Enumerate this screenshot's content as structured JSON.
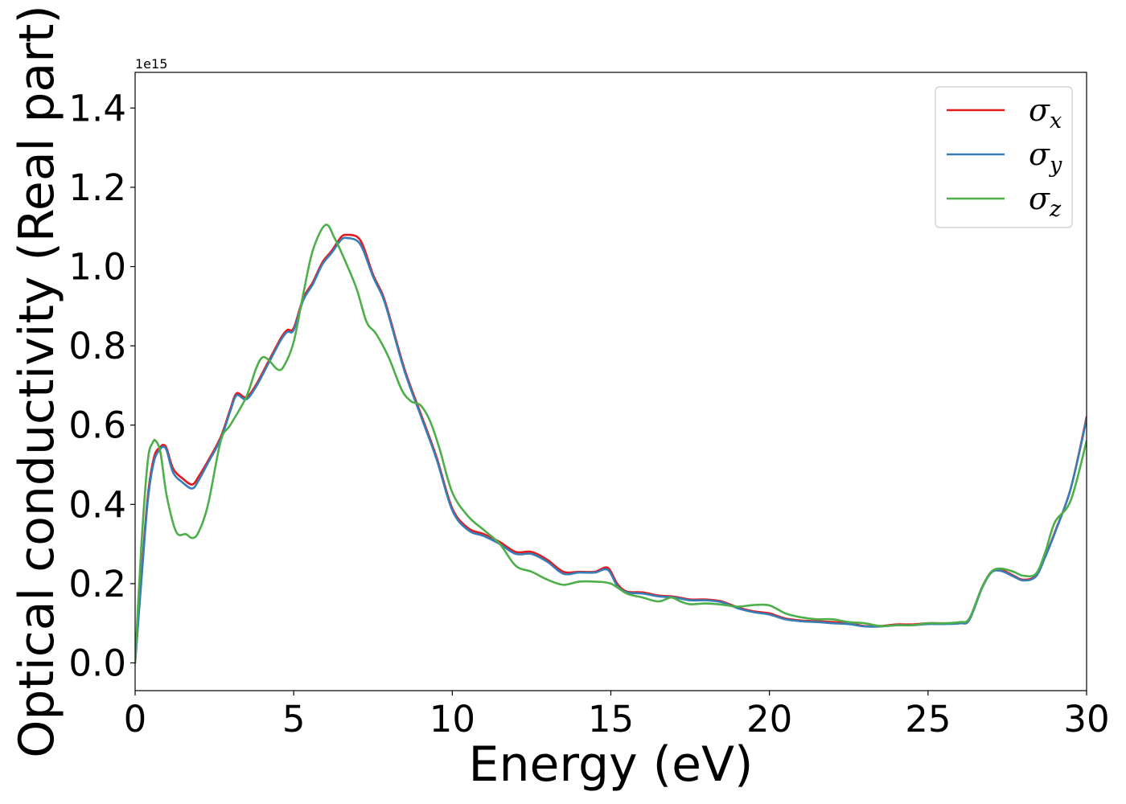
{
  "chart_data": {
    "type": "line",
    "xlabel": "Energy (eV)",
    "ylabel": "Optical conductivity (Real part)",
    "y_offset_label": "1e15",
    "y_scale": 1000000000000000.0,
    "xlim": [
      0,
      30
    ],
    "ylim": [
      -0.07,
      1.49
    ],
    "x_ticks": [
      0,
      5,
      10,
      15,
      20,
      25,
      30
    ],
    "x_tick_labels": [
      "0",
      "5",
      "10",
      "15",
      "20",
      "25",
      "30"
    ],
    "y_ticks": [
      0.0,
      0.2,
      0.4,
      0.6,
      0.8,
      1.0,
      1.2,
      1.4
    ],
    "y_tick_labels": [
      "0.0",
      "0.2",
      "0.4",
      "0.6",
      "0.8",
      "1.0",
      "1.2",
      "1.4"
    ],
    "grid": false,
    "legend_position": "top-right",
    "series": [
      {
        "name": "σx",
        "symbol": "σ",
        "sub": "x",
        "color": "#e41a1c",
        "x": [
          0,
          0.2,
          0.4,
          0.6,
          0.8,
          0.9,
          1.0,
          1.2,
          1.5,
          1.8,
          2.0,
          2.3,
          2.7,
          3.0,
          3.2,
          3.5,
          3.8,
          4.2,
          4.6,
          4.8,
          5.0,
          5.3,
          5.6,
          5.9,
          6.2,
          6.5,
          6.7,
          7.0,
          7.2,
          7.5,
          7.8,
          8.0,
          8.5,
          9.0,
          9.5,
          10.0,
          10.5,
          11.0,
          11.5,
          12.0,
          12.5,
          13.0,
          13.5,
          14.0,
          14.5,
          14.9,
          15.2,
          15.5,
          16.0,
          16.5,
          17.0,
          17.5,
          18.0,
          18.5,
          19.0,
          19.5,
          20.0,
          20.5,
          21.0,
          21.5,
          22.0,
          22.5,
          23.0,
          23.5,
          24.0,
          24.5,
          25.0,
          25.5,
          26.0,
          26.3,
          26.7,
          27.0,
          27.3,
          27.7,
          28.0,
          28.4,
          28.7,
          29.0,
          29.5,
          30.0
        ],
        "y": [
          0.0,
          0.22,
          0.42,
          0.52,
          0.545,
          0.55,
          0.54,
          0.49,
          0.465,
          0.45,
          0.47,
          0.51,
          0.57,
          0.64,
          0.68,
          0.67,
          0.7,
          0.76,
          0.82,
          0.84,
          0.845,
          0.92,
          0.96,
          1.01,
          1.04,
          1.075,
          1.08,
          1.075,
          1.05,
          0.98,
          0.93,
          0.88,
          0.74,
          0.63,
          0.52,
          0.39,
          0.34,
          0.325,
          0.305,
          0.28,
          0.28,
          0.26,
          0.23,
          0.23,
          0.23,
          0.24,
          0.2,
          0.18,
          0.178,
          0.17,
          0.167,
          0.16,
          0.16,
          0.155,
          0.14,
          0.13,
          0.125,
          0.112,
          0.107,
          0.105,
          0.103,
          0.1,
          0.093,
          0.093,
          0.097,
          0.097,
          0.1,
          0.1,
          0.1,
          0.11,
          0.19,
          0.23,
          0.235,
          0.22,
          0.21,
          0.22,
          0.27,
          0.33,
          0.44,
          0.62
        ]
      },
      {
        "name": "σy",
        "symbol": "σ",
        "sub": "y",
        "color": "#377eb8",
        "x": [
          0,
          0.2,
          0.4,
          0.6,
          0.8,
          0.9,
          1.0,
          1.2,
          1.5,
          1.8,
          2.0,
          2.3,
          2.7,
          3.0,
          3.2,
          3.5,
          3.8,
          4.2,
          4.6,
          4.8,
          5.0,
          5.3,
          5.6,
          5.9,
          6.2,
          6.5,
          6.7,
          7.0,
          7.2,
          7.5,
          7.8,
          8.0,
          8.5,
          9.0,
          9.5,
          10.0,
          10.5,
          11.0,
          11.5,
          12.0,
          12.5,
          13.0,
          13.5,
          14.0,
          14.5,
          14.9,
          15.2,
          15.5,
          16.0,
          16.5,
          17.0,
          17.5,
          18.0,
          18.5,
          19.0,
          19.5,
          20.0,
          20.5,
          21.0,
          21.5,
          22.0,
          22.5,
          23.0,
          23.5,
          24.0,
          24.5,
          25.0,
          25.5,
          26.0,
          26.3,
          26.7,
          27.0,
          27.3,
          27.7,
          28.0,
          28.4,
          28.7,
          29.0,
          29.5,
          30.0
        ],
        "y": [
          0.0,
          0.21,
          0.41,
          0.51,
          0.54,
          0.545,
          0.535,
          0.48,
          0.455,
          0.44,
          0.46,
          0.505,
          0.565,
          0.635,
          0.675,
          0.665,
          0.695,
          0.755,
          0.815,
          0.835,
          0.84,
          0.915,
          0.955,
          1.005,
          1.035,
          1.068,
          1.072,
          1.065,
          1.04,
          0.975,
          0.925,
          0.875,
          0.735,
          0.625,
          0.515,
          0.385,
          0.335,
          0.32,
          0.3,
          0.275,
          0.275,
          0.255,
          0.225,
          0.228,
          0.228,
          0.235,
          0.195,
          0.178,
          0.175,
          0.168,
          0.165,
          0.158,
          0.158,
          0.153,
          0.138,
          0.128,
          0.122,
          0.11,
          0.105,
          0.103,
          0.1,
          0.098,
          0.092,
          0.092,
          0.095,
          0.095,
          0.098,
          0.098,
          0.1,
          0.108,
          0.188,
          0.228,
          0.232,
          0.218,
          0.208,
          0.218,
          0.268,
          0.328,
          0.44,
          0.615
        ]
      },
      {
        "name": "σz",
        "symbol": "σ",
        "sub": "z",
        "color": "#4daf4a",
        "x": [
          0,
          0.2,
          0.4,
          0.55,
          0.65,
          0.8,
          1.0,
          1.3,
          1.6,
          1.8,
          2.0,
          2.3,
          2.7,
          3.0,
          3.5,
          3.8,
          4.0,
          4.2,
          4.5,
          4.7,
          5.0,
          5.3,
          5.6,
          6.0,
          6.3,
          6.7,
          7.0,
          7.3,
          7.6,
          8.0,
          8.4,
          8.7,
          9.0,
          9.3,
          9.6,
          10.0,
          10.5,
          11.0,
          11.5,
          12.0,
          12.5,
          13.0,
          13.5,
          14.0,
          14.5,
          15.0,
          15.5,
          16.0,
          16.5,
          16.9,
          17.2,
          17.5,
          18.0,
          18.5,
          19.0,
          19.5,
          20.0,
          20.5,
          21.0,
          21.5,
          22.0,
          22.5,
          23.0,
          23.5,
          24.0,
          24.5,
          25.0,
          25.5,
          26.0,
          26.3,
          26.7,
          27.0,
          27.3,
          27.7,
          28.0,
          28.4,
          28.7,
          29.0,
          29.5,
          30.0
        ],
        "y": [
          0.0,
          0.3,
          0.51,
          0.555,
          0.56,
          0.53,
          0.42,
          0.33,
          0.325,
          0.315,
          0.33,
          0.4,
          0.56,
          0.6,
          0.67,
          0.74,
          0.77,
          0.765,
          0.74,
          0.75,
          0.81,
          0.93,
          1.04,
          1.105,
          1.07,
          1.0,
          0.94,
          0.86,
          0.83,
          0.77,
          0.69,
          0.66,
          0.65,
          0.61,
          0.54,
          0.43,
          0.37,
          0.335,
          0.3,
          0.245,
          0.23,
          0.21,
          0.197,
          0.205,
          0.205,
          0.2,
          0.175,
          0.165,
          0.155,
          0.165,
          0.155,
          0.148,
          0.15,
          0.147,
          0.142,
          0.146,
          0.145,
          0.125,
          0.115,
          0.11,
          0.11,
          0.103,
          0.1,
          0.093,
          0.095,
          0.095,
          0.1,
          0.1,
          0.103,
          0.112,
          0.19,
          0.23,
          0.238,
          0.23,
          0.22,
          0.225,
          0.28,
          0.355,
          0.41,
          0.56
        ]
      }
    ]
  }
}
